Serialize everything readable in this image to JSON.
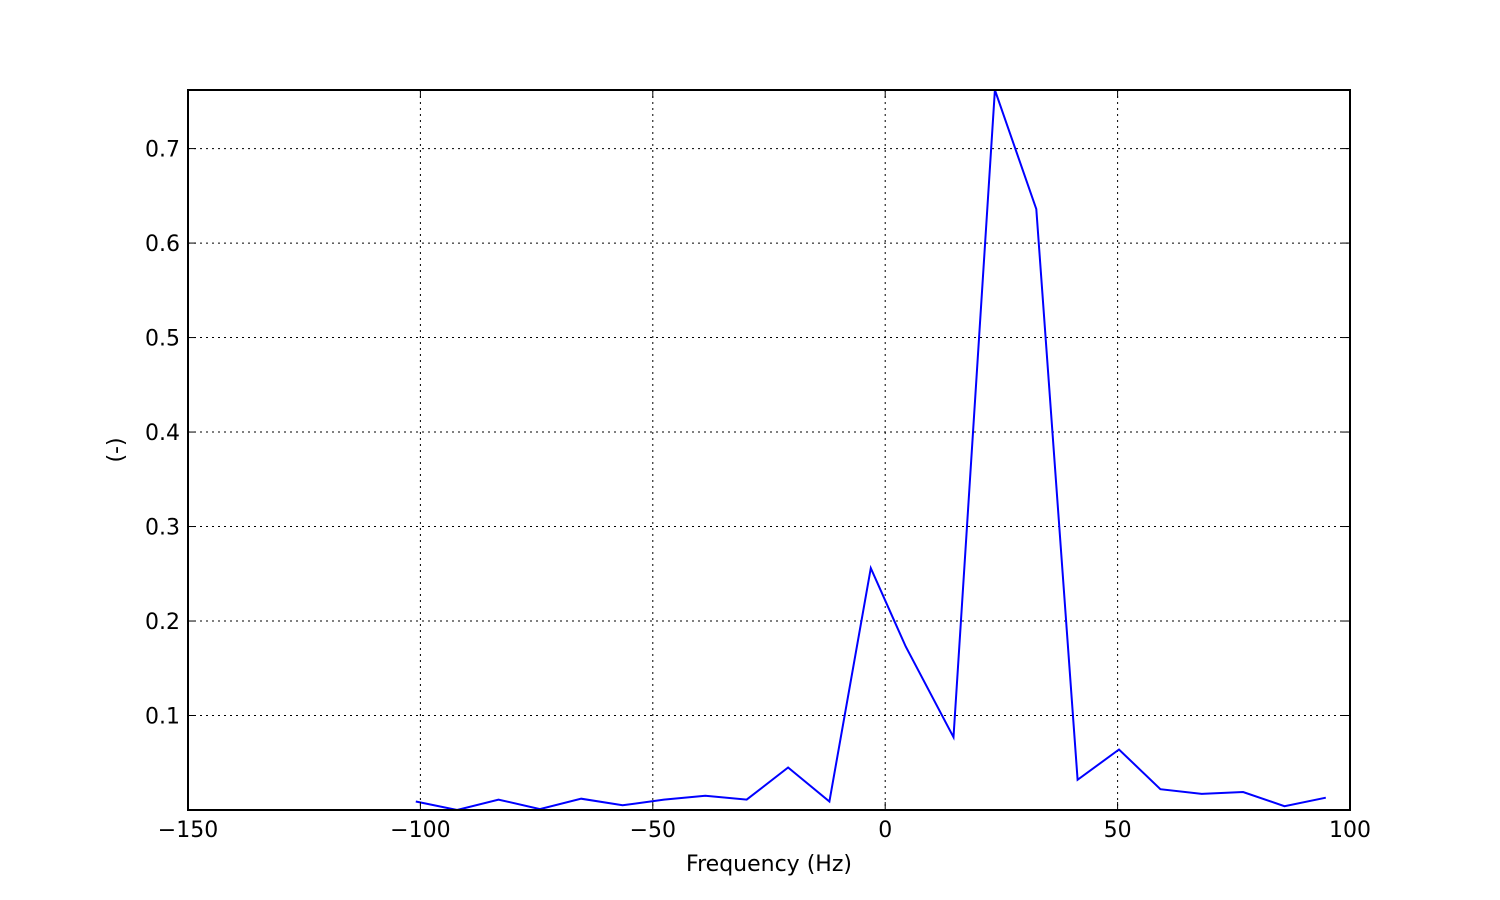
{
  "chart_data": {
    "type": "line",
    "title": "",
    "xlabel": "Frequency (Hz)",
    "ylabel": "(-)",
    "xlim": [
      -150,
      100
    ],
    "ylim": [
      0.0,
      0.762
    ],
    "xticks": [
      -150,
      -100,
      -50,
      0,
      50,
      100
    ],
    "xtick_labels": [
      "−150",
      "−100",
      "−50",
      "0",
      "50",
      "100"
    ],
    "yticks": [
      0.1,
      0.2,
      0.3,
      0.4,
      0.5,
      0.6,
      0.7
    ],
    "ytick_labels": [
      "0.1",
      "0.2",
      "0.3",
      "0.4",
      "0.5",
      "0.6",
      "0.7"
    ],
    "grid": true,
    "series": [
      {
        "color": "#0000ff",
        "x": [
          -101.0,
          -92.1,
          -83.2,
          -74.3,
          -65.4,
          -56.5,
          -47.6,
          -38.7,
          -29.8,
          -20.9,
          -12.0,
          -3.1,
          4.4,
          14.7,
          23.6,
          32.5,
          41.4,
          50.3,
          59.2,
          68.1,
          77.0,
          85.9,
          94.8
        ],
        "values": [
          0.009,
          0.0,
          0.011,
          0.001,
          0.012,
          0.005,
          0.011,
          0.015,
          0.011,
          0.045,
          0.009,
          0.256,
          0.173,
          0.077,
          0.762,
          0.636,
          0.032,
          0.064,
          0.022,
          0.017,
          0.019,
          0.004,
          0.013
        ]
      }
    ]
  }
}
